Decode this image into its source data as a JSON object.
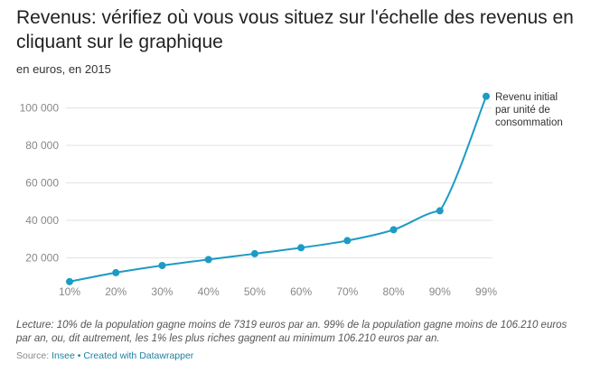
{
  "title": "Revenus: vérifiez où vous vous situez sur l'échelle des revenus en cliquant sur le graphique",
  "subtitle": "en euros, en 2015",
  "chart_data": {
    "type": "line",
    "title": "Revenus: vérifiez où vous vous situez sur l'échelle des revenus en cliquant sur le graphique",
    "subtitle": "en euros, en 2015",
    "categories": [
      "10%",
      "20%",
      "30%",
      "40%",
      "50%",
      "60%",
      "70%",
      "80%",
      "90%",
      "99%"
    ],
    "series": [
      {
        "name": "Revenu initial par unité de consommation",
        "values": [
          7319,
          12100,
          15900,
          19100,
          22200,
          25400,
          29200,
          35000,
          45100,
          106210
        ]
      }
    ],
    "annotation": [
      "Revenu initial",
      "par unité de",
      "consommation"
    ],
    "yticks": [
      20000,
      40000,
      60000,
      80000,
      100000
    ],
    "ytick_labels": [
      "20 000",
      "40 000",
      "60 000",
      "80 000",
      "100 000"
    ],
    "ylim": [
      0,
      106210
    ],
    "grid": true,
    "color": "#1d9bc4"
  },
  "notes": "Lecture: 10% de la population gagne moins de 7319 euros par an. 99% de la population gagne moins de 106.210 euros par an, ou, dit autrement, les 1% les plus riches gagnent au minimum 106.210 euros par an.",
  "source": {
    "label": "Source:",
    "link": "Insee",
    "sep": "•",
    "credit": "Created with Datawrapper"
  }
}
